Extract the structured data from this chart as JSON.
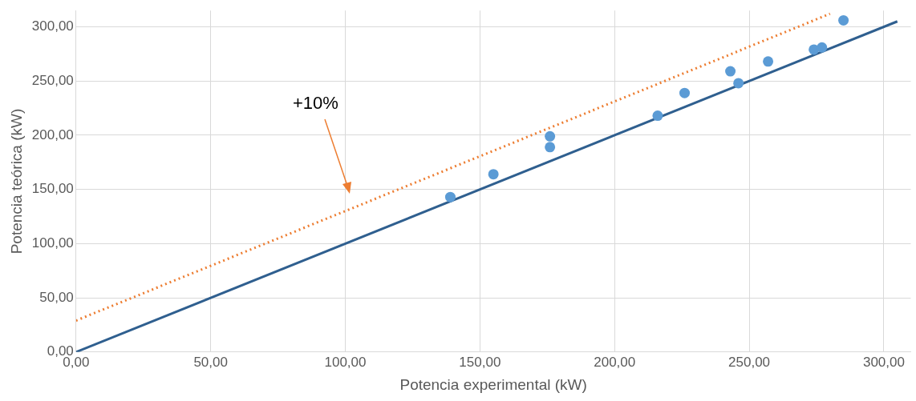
{
  "chart_data": {
    "type": "scatter",
    "xlabel": "Potencia experimental (kW)",
    "ylabel": "Potencia teórica (kW)",
    "xlim": [
      0,
      310
    ],
    "ylim": [
      0,
      315
    ],
    "xticks": [
      {
        "value": 0,
        "label": "0,00"
      },
      {
        "value": 50,
        "label": "50,00"
      },
      {
        "value": 100,
        "label": "100,00"
      },
      {
        "value": 150,
        "label": "150,00"
      },
      {
        "value": 200,
        "label": "200,00"
      },
      {
        "value": 250,
        "label": "250,00"
      },
      {
        "value": 300,
        "label": "300,00"
      }
    ],
    "yticks": [
      {
        "value": 0,
        "label": "0,00"
      },
      {
        "value": 50,
        "label": "50,00"
      },
      {
        "value": 100,
        "label": "100,00"
      },
      {
        "value": 150,
        "label": "150,00"
      },
      {
        "value": 200,
        "label": "200,00"
      },
      {
        "value": 250,
        "label": "250,00"
      },
      {
        "value": 300,
        "label": "300,00"
      }
    ],
    "grid": true,
    "legend": false,
    "series": [
      {
        "marker": "circle",
        "color": "#5b9bd5",
        "x": [
          139,
          155,
          176,
          176,
          216,
          226,
          243,
          246,
          257,
          274,
          277,
          285
        ],
        "values": [
          143,
          164,
          189,
          199,
          218,
          239,
          259,
          248,
          268,
          279,
          281,
          306
        ]
      },
      {
        "type": "line",
        "color": "#2f5f8f",
        "line_style": "solid",
        "x": [
          0,
          305
        ],
        "values": [
          0,
          305
        ]
      },
      {
        "type": "line",
        "color": "#ed7d31",
        "line_style": "dotted",
        "x": [
          0,
          280
        ],
        "values": [
          29,
          312
        ]
      }
    ],
    "annotations": [
      "+10%"
    ]
  }
}
